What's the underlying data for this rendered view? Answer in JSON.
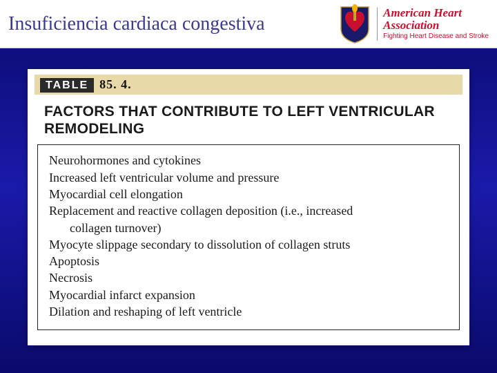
{
  "header": {
    "title": "Insuficiencia cardiaca congestiva",
    "aha": {
      "line1": "American Heart",
      "line2": "Association",
      "tagline": "Fighting Heart Disease and Stroke"
    },
    "logo_colors": {
      "torch": "#c8102e",
      "flame": "#f4b400",
      "shield": "#1a1a6b"
    }
  },
  "table": {
    "label_prefix": "TABLE",
    "number": "85. 4.",
    "heading": "FACTORS THAT CONTRIBUTE TO LEFT VENTRICULAR REMODELING",
    "factors": [
      "Neurohormones and cytokines",
      "Increased left ventricular volume and pressure",
      "Myocardial cell elongation",
      "Replacement and reactive collagen deposition (i.e., increased",
      "collagen turnover)",
      "Myocyte slippage secondary to dissolution of collagen struts",
      "Apoptosis",
      "Necrosis",
      "Myocardial infarct expansion",
      "Dilation and reshaping of left ventricle"
    ],
    "indent_indices": [
      4
    ]
  },
  "colors": {
    "bg_gradient_top": "#0a0a6b",
    "bg_gradient_mid": "#1a1aaa",
    "header_bg": "#ffffff",
    "title_color": "#3a3a8a",
    "band_bg": "#e8d9a8",
    "aha_red": "#c8102e"
  }
}
